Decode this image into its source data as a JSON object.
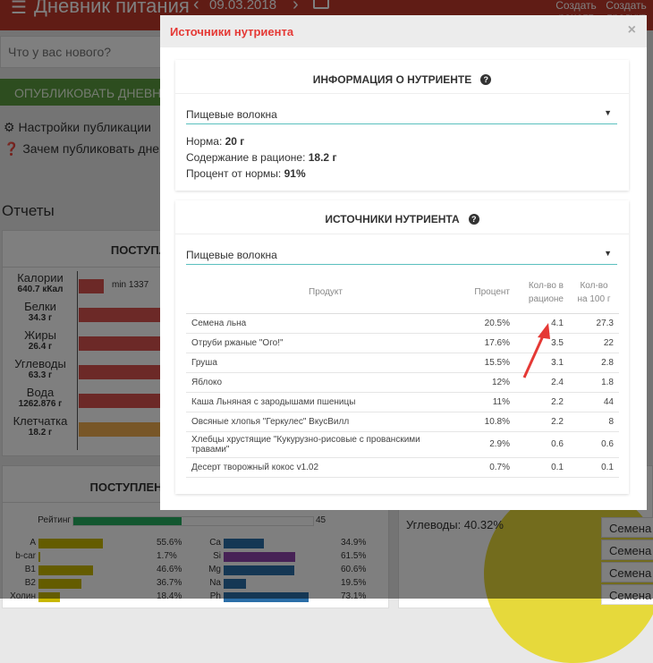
{
  "header": {
    "title": "Дневник питания",
    "date": "09.03.2018",
    "create_recipe": "Создать рецепт",
    "create_product": "Создать продукт"
  },
  "feed": {
    "placeholder": "Что у вас нового?",
    "publish_button": "ОПУБЛИКОВАТЬ ДНЕВНИК",
    "settings_link": "Настройки публикации",
    "why_link": "Зачем публиковать дневник"
  },
  "reports": {
    "title": "Отчеты",
    "macro_card": {
      "title": "ПОСТУПЛЕНИЕ НУТРИЕНТОВ",
      "min_label": "min 1337",
      "rows": [
        {
          "name": "Калории",
          "value": "640.7 кКал",
          "color": "#d9534f"
        },
        {
          "name": "Белки",
          "value": "34.3 г",
          "color": "#d9534f"
        },
        {
          "name": "Жиры",
          "value": "26.4 г",
          "color": "#d9534f"
        },
        {
          "name": "Углеводы",
          "value": "63.3 г",
          "color": "#d9534f"
        },
        {
          "name": "Вода",
          "value": "1262.876 г",
          "color": "#d9534f"
        },
        {
          "name": "Клетчатка",
          "value": "18.2 г",
          "color": "#f0ad4e"
        }
      ]
    },
    "micro_card": {
      "title": "ПОСТУПЛЕНИЕ МИКРОНУТРИЕНТОВ",
      "rating_label": "Рейтинг",
      "rating_value": "45",
      "rating_fraction": 0.45,
      "vitamins": [
        {
          "name": "A",
          "pct": "55.6%",
          "v": 55.6
        },
        {
          "name": "b-car",
          "pct": "1.7%",
          "v": 1.7
        },
        {
          "name": "B1",
          "pct": "46.6%",
          "v": 46.6
        },
        {
          "name": "B2",
          "pct": "36.7%",
          "v": 36.7
        },
        {
          "name": "Холин",
          "pct": "18.4%",
          "v": 18.4
        }
      ],
      "minerals": [
        {
          "name": "Ca",
          "pct": "34.9%",
          "v": 34.9,
          "color": "#2b6ea8"
        },
        {
          "name": "Si",
          "pct": "61.5%",
          "v": 61.5,
          "color": "#8e44ad"
        },
        {
          "name": "Mg",
          "pct": "60.6%",
          "v": 60.6,
          "color": "#2b6ea8"
        },
        {
          "name": "Na",
          "pct": "19.5%",
          "v": 19.5,
          "color": "#2b6ea8"
        },
        {
          "name": "Ph",
          "pct": "73.1%",
          "v": 73.1,
          "color": "#2b6ea8"
        }
      ]
    },
    "pie_label": "Углеводы: 40.32%",
    "side_list": [
      "Семена л",
      "Семена б",
      "Семена б",
      "Семена"
    ]
  },
  "modal": {
    "title": "Источники нутриента",
    "close": "×",
    "info": {
      "heading": "ИНФОРМАЦИЯ О НУТРИЕНТЕ",
      "selected": "Пищевые волокна",
      "norm_label": "Норма: ",
      "norm_value": "20 г",
      "content_label": "Содержание в рационе: ",
      "content_value": "18.2 г",
      "percent_label": "Процент от нормы: ",
      "percent_value": "91%"
    },
    "sources": {
      "heading": "ИСТОЧНИКИ НУТРИЕНТА",
      "selected": "Пищевые волокна",
      "columns": [
        "Продукт",
        "Процент",
        "Кол-во в рационе",
        "Кол-во на 100 г"
      ],
      "rows": [
        [
          "Семена льна",
          "20.5%",
          "4.1",
          "27.3"
        ],
        [
          "Отруби ржаные \"Ого!\"",
          "17.6%",
          "3.5",
          "22"
        ],
        [
          "Груша",
          "15.5%",
          "3.1",
          "2.8"
        ],
        [
          "Яблоко",
          "12%",
          "2.4",
          "1.8"
        ],
        [
          "Каша Льняная с зародышами пшеницы",
          "11%",
          "2.2",
          "44"
        ],
        [
          "Овсяные хлопья \"Геркулес\" ВкусВилл",
          "10.8%",
          "2.2",
          "8"
        ],
        [
          "Хлебцы хрустящие \"Кукурузно-рисовые с прованскими травами\"",
          "2.9%",
          "0.6",
          "0.6"
        ],
        [
          "Десерт творожный кокос v1.02",
          "0.7%",
          "0.1",
          "0.1"
        ]
      ]
    }
  },
  "colors": {
    "accent": "#c0392b",
    "modal_title": "#e53935",
    "arrow": "#e53935",
    "select_underline": "#5bc0be"
  }
}
